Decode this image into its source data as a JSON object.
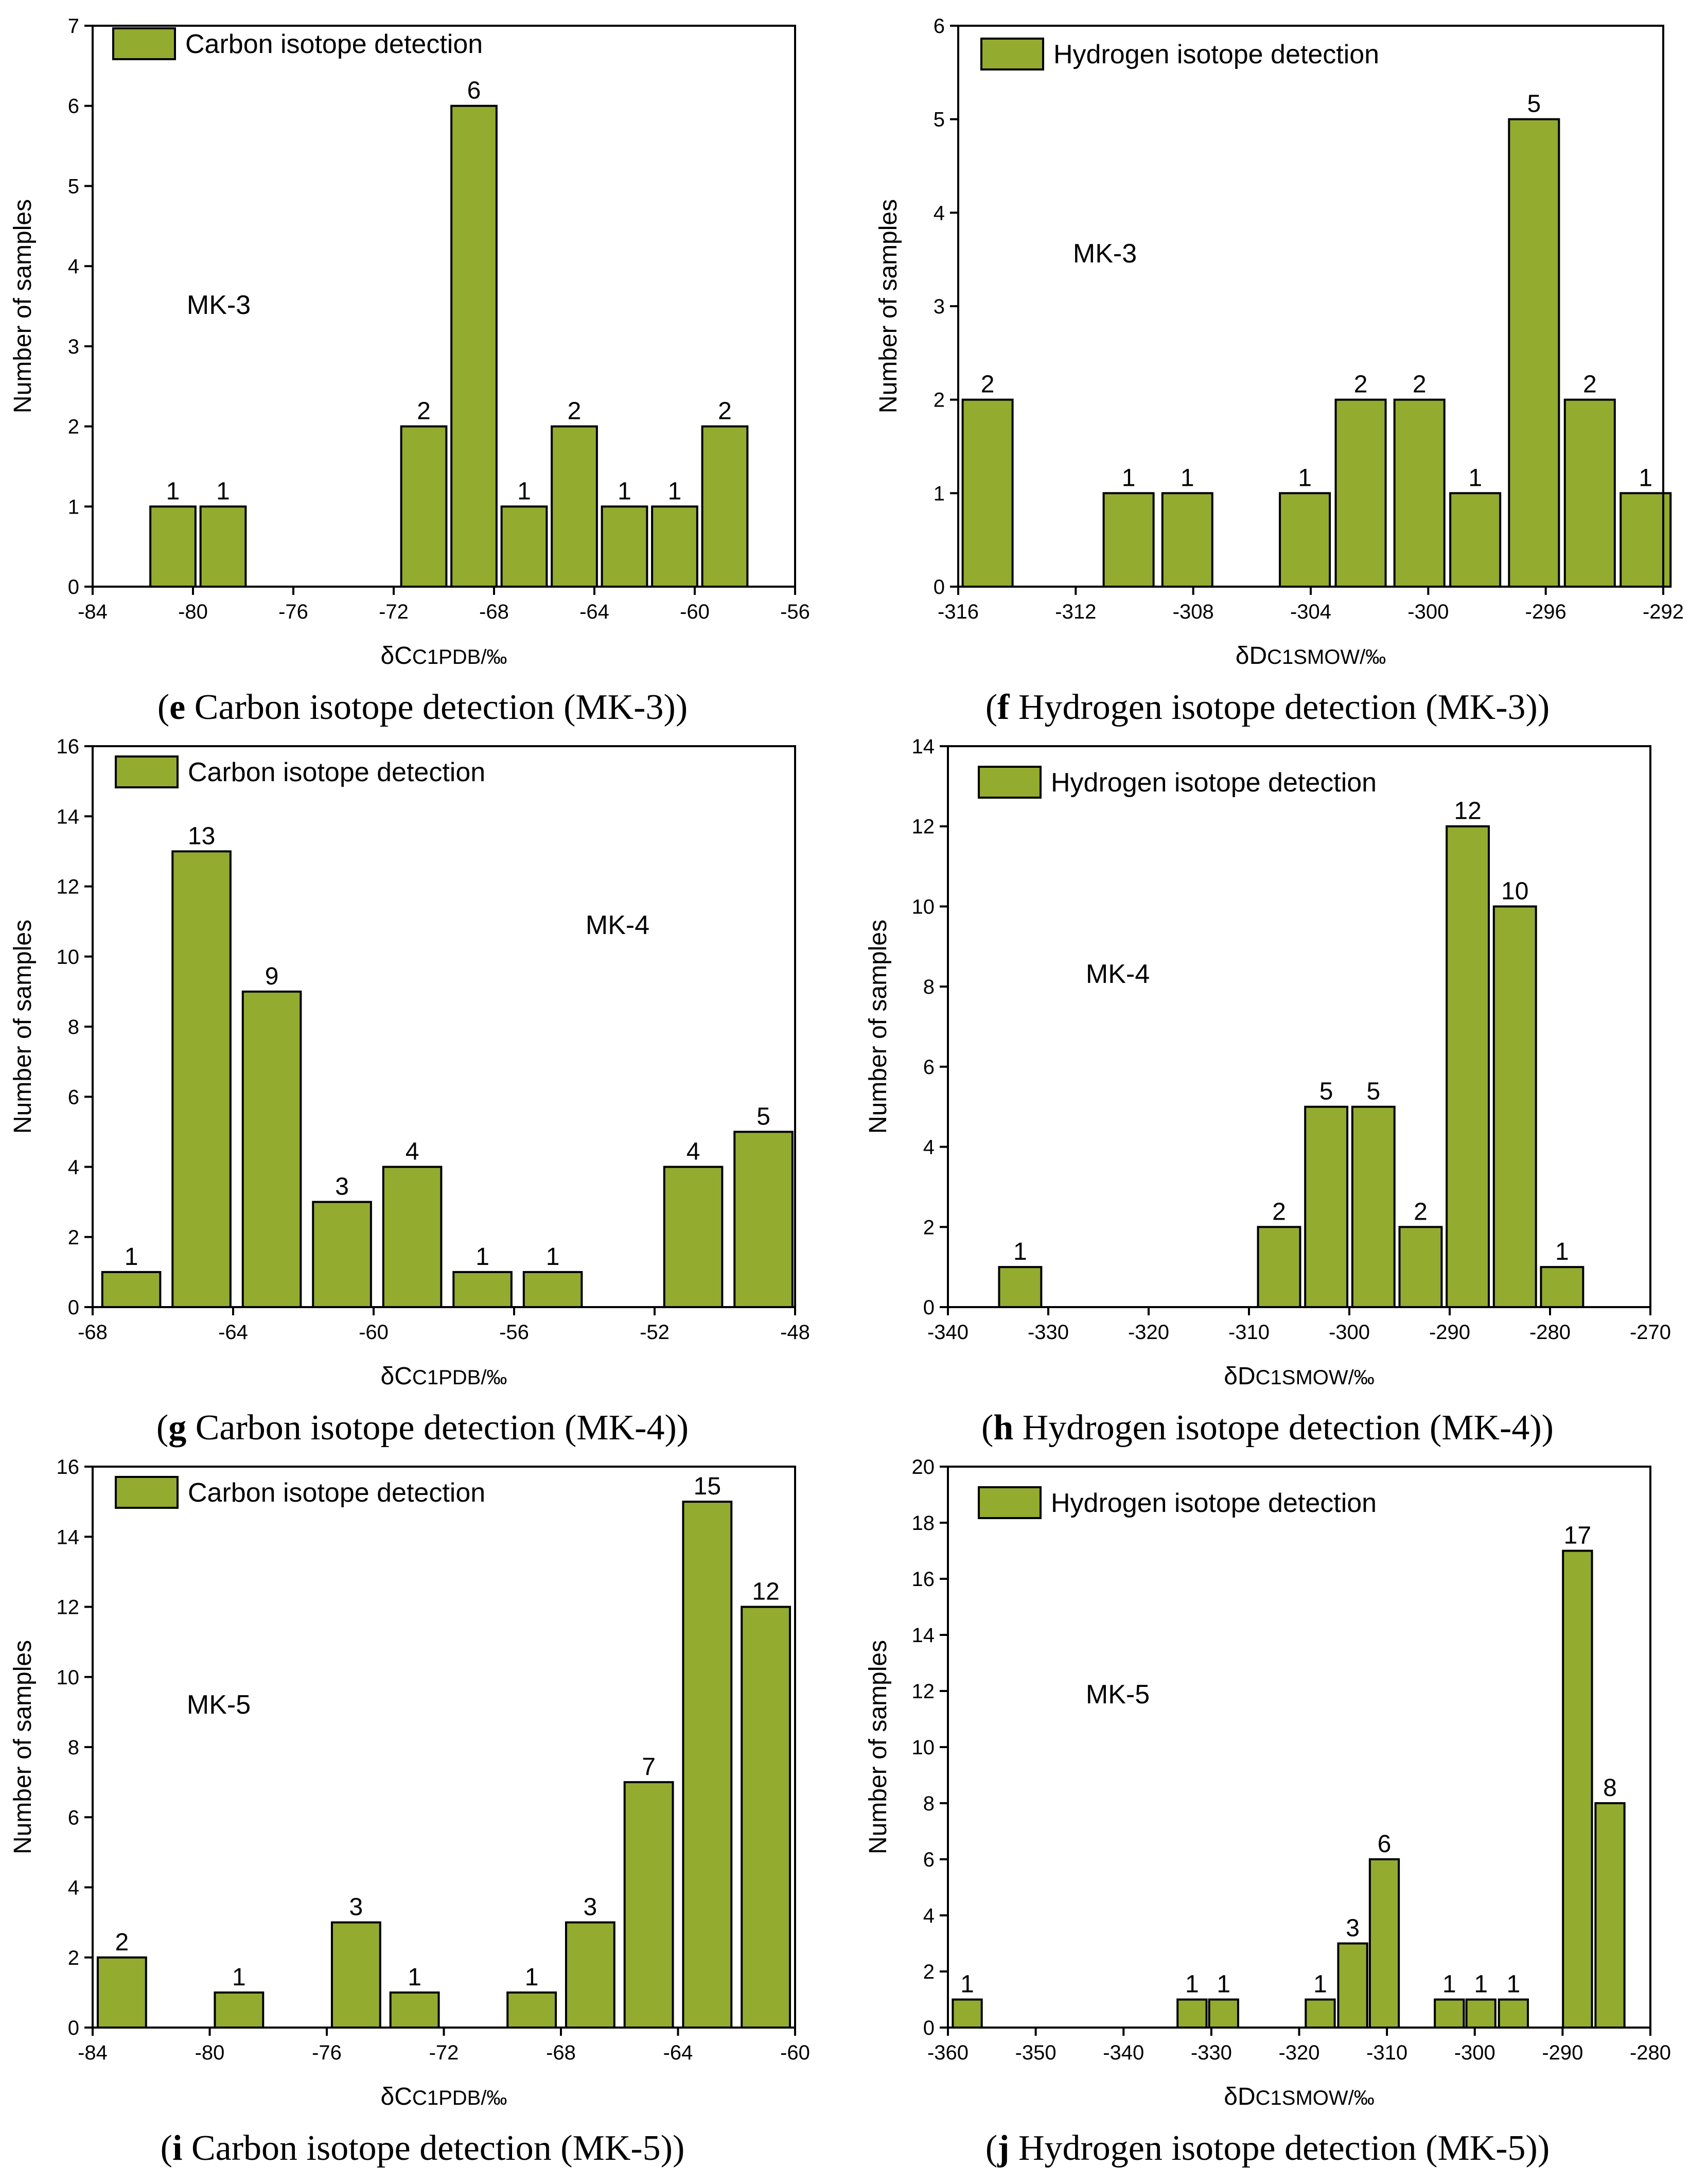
{
  "colors": {
    "bar_fill": "#93AB2F",
    "bar_stroke": "#000000",
    "text": "#000000"
  },
  "chart_data": [
    {
      "id": "e",
      "type": "bar",
      "series_name": "Carbon isotope detection",
      "annotation": "MK-3",
      "xlabel": "δC",
      "xlabel_sub": "C1PDB/‰",
      "ylabel": "Number of samples",
      "xlim": [
        -84,
        -56
      ],
      "ylim": [
        0,
        7
      ],
      "xticks": [
        -84,
        -80,
        -76,
        -72,
        -68,
        -64,
        -60,
        -56
      ],
      "yticks": [
        0,
        1,
        2,
        3,
        4,
        5,
        6,
        7
      ],
      "bin_width": 1.8,
      "bins": [
        {
          "center": -80.8,
          "value": 1
        },
        {
          "center": -78.8,
          "value": 1
        },
        {
          "center": -70.8,
          "value": 2
        },
        {
          "center": -68.8,
          "value": 6
        },
        {
          "center": -66.8,
          "value": 1
        },
        {
          "center": -64.8,
          "value": 2
        },
        {
          "center": -62.8,
          "value": 1
        },
        {
          "center": -60.8,
          "value": 1
        },
        {
          "center": -58.8,
          "value": 2
        }
      ],
      "caption_letter": "e",
      "caption_text": " Carbon isotope detection (MK-3)"
    },
    {
      "id": "f",
      "type": "bar",
      "series_name": "Hydrogen isotope detection",
      "annotation": "MK-3",
      "xlabel": "δD",
      "xlabel_sub": "C1SMOW/‰",
      "ylabel": "Number of samples",
      "xlim": [
        -316,
        -292
      ],
      "ylim": [
        0,
        6
      ],
      "xticks": [
        -316,
        -312,
        -308,
        -304,
        -300,
        -296,
        -292
      ],
      "yticks": [
        0,
        1,
        2,
        3,
        4,
        5,
        6
      ],
      "bin_width": 1.7,
      "bins": [
        {
          "center": -315.0,
          "value": 2
        },
        {
          "center": -310.2,
          "value": 1
        },
        {
          "center": -308.2,
          "value": 1
        },
        {
          "center": -304.2,
          "value": 1
        },
        {
          "center": -302.3,
          "value": 2
        },
        {
          "center": -300.3,
          "value": 2
        },
        {
          "center": -298.4,
          "value": 1
        },
        {
          "center": -296.4,
          "value": 5
        },
        {
          "center": -294.5,
          "value": 2
        },
        {
          "center": -292.6,
          "value": 1
        }
      ],
      "caption_letter": "f",
      "caption_text": " Hydrogen isotope detection (MK-3)"
    },
    {
      "id": "g",
      "type": "bar",
      "series_name": "Carbon isotope detection",
      "annotation": "MK-4",
      "xlabel": "δC",
      "xlabel_sub": "C1PDB/‰",
      "ylabel": "Number of samples",
      "xlim": [
        -68,
        -48
      ],
      "ylim": [
        0,
        16
      ],
      "xticks": [
        -68,
        -64,
        -60,
        -56,
        -52,
        -48
      ],
      "yticks": [
        0,
        2,
        4,
        6,
        8,
        10,
        12,
        14,
        16
      ],
      "bin_width": 1.65,
      "bins": [
        {
          "center": -66.9,
          "value": 1
        },
        {
          "center": -64.9,
          "value": 13
        },
        {
          "center": -62.9,
          "value": 9
        },
        {
          "center": -60.9,
          "value": 3
        },
        {
          "center": -58.9,
          "value": 4
        },
        {
          "center": -56.9,
          "value": 1
        },
        {
          "center": -54.9,
          "value": 1
        },
        {
          "center": -50.9,
          "value": 4
        },
        {
          "center": -48.9,
          "value": 5
        }
      ],
      "caption_letter": "g",
      "caption_text": " Carbon isotope detection (MK-4)"
    },
    {
      "id": "h",
      "type": "bar",
      "series_name": "Hydrogen isotope detection",
      "annotation": "MK-4",
      "xlabel": "δD",
      "xlabel_sub": "C1SMOW/‰",
      "ylabel": "Number of samples",
      "xlim": [
        -340,
        -270
      ],
      "ylim": [
        0,
        14
      ],
      "xticks": [
        -340,
        -330,
        -320,
        -310,
        -300,
        -290,
        -280,
        -270
      ],
      "yticks": [
        0,
        2,
        4,
        6,
        8,
        10,
        12,
        14
      ],
      "bin_width": 4.2,
      "bins": [
        {
          "center": -332.8,
          "value": 1
        },
        {
          "center": -307.0,
          "value": 2
        },
        {
          "center": -302.3,
          "value": 5
        },
        {
          "center": -297.6,
          "value": 5
        },
        {
          "center": -292.9,
          "value": 2
        },
        {
          "center": -288.2,
          "value": 12
        },
        {
          "center": -283.5,
          "value": 10
        },
        {
          "center": -278.8,
          "value": 1
        }
      ],
      "caption_letter": "h",
      "caption_text": " Hydrogen isotope detection (MK-4)"
    },
    {
      "id": "i",
      "type": "bar",
      "series_name": "Carbon isotope detection",
      "annotation": "MK-5",
      "xlabel": "δC",
      "xlabel_sub": "C1PDB/‰",
      "ylabel": "Number of samples",
      "xlim": [
        -84,
        -60
      ],
      "ylim": [
        0,
        16
      ],
      "xticks": [
        -84,
        -80,
        -76,
        -72,
        -68,
        -64,
        -60
      ],
      "yticks": [
        0,
        2,
        4,
        6,
        8,
        10,
        12,
        14,
        16
      ],
      "bin_width": 1.65,
      "bins": [
        {
          "center": -83.0,
          "value": 2
        },
        {
          "center": -79.0,
          "value": 1
        },
        {
          "center": -75.0,
          "value": 3
        },
        {
          "center": -73.0,
          "value": 1
        },
        {
          "center": -69.0,
          "value": 1
        },
        {
          "center": -67.0,
          "value": 3
        },
        {
          "center": -65.0,
          "value": 7
        },
        {
          "center": -63.0,
          "value": 15
        },
        {
          "center": -61.0,
          "value": 12
        }
      ],
      "caption_letter": "i",
      "caption_text": " Carbon isotope detection (MK-5)"
    },
    {
      "id": "j",
      "type": "bar",
      "series_name": "Hydrogen isotope detection",
      "annotation": "MK-5",
      "xlabel": "δD",
      "xlabel_sub": "C1SMOW/‰",
      "ylabel": "Number of samples",
      "xlim": [
        -360,
        -280
      ],
      "ylim": [
        0,
        20
      ],
      "xticks": [
        -360,
        -350,
        -340,
        -330,
        -320,
        -310,
        -300,
        -290,
        -280
      ],
      "yticks": [
        0,
        2,
        4,
        6,
        8,
        10,
        12,
        14,
        16,
        18,
        20
      ],
      "bin_width": 3.3,
      "bins": [
        {
          "center": -357.8,
          "value": 1
        },
        {
          "center": -332.2,
          "value": 1
        },
        {
          "center": -328.6,
          "value": 1
        },
        {
          "center": -317.6,
          "value": 1
        },
        {
          "center": -313.9,
          "value": 3
        },
        {
          "center": -310.3,
          "value": 6
        },
        {
          "center": -302.9,
          "value": 1
        },
        {
          "center": -299.3,
          "value": 1
        },
        {
          "center": -295.6,
          "value": 1
        },
        {
          "center": -288.3,
          "value": 17
        },
        {
          "center": -284.6,
          "value": 8
        }
      ],
      "caption_letter": "j",
      "caption_text": " Hydrogen isotope detection (MK-5)"
    }
  ]
}
